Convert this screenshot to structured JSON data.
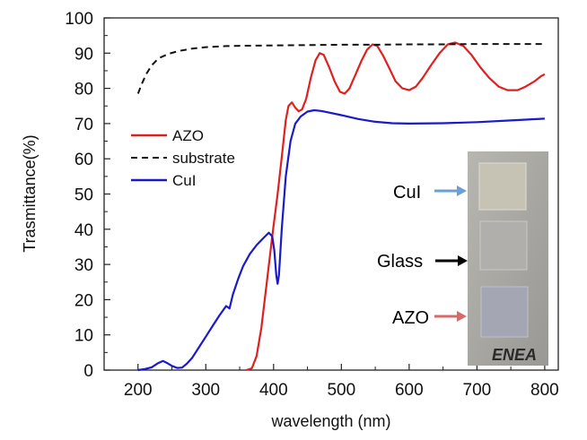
{
  "chart_data": {
    "type": "line",
    "xlabel": "wavelength (nm)",
    "ylabel": "Trasmittance(%)",
    "xlim": [
      150,
      820
    ],
    "ylim": [
      0,
      100
    ],
    "xticks": [
      200,
      300,
      400,
      500,
      600,
      700,
      800
    ],
    "yticks": [
      0,
      10,
      20,
      30,
      40,
      50,
      60,
      70,
      80,
      90,
      100
    ],
    "legend_position": "left-middle",
    "series": [
      {
        "name": "AZO",
        "color": "#e02020",
        "dash": "solid",
        "points": [
          [
            360,
            0
          ],
          [
            368,
            0.5
          ],
          [
            375,
            4
          ],
          [
            382,
            12
          ],
          [
            390,
            25
          ],
          [
            398,
            38
          ],
          [
            406,
            50
          ],
          [
            413,
            62
          ],
          [
            418,
            71
          ],
          [
            422,
            75
          ],
          [
            427,
            76
          ],
          [
            432,
            74.5
          ],
          [
            437,
            73.5
          ],
          [
            442,
            74
          ],
          [
            448,
            77
          ],
          [
            455,
            83
          ],
          [
            462,
            88
          ],
          [
            468,
            90
          ],
          [
            474,
            89.5
          ],
          [
            482,
            86
          ],
          [
            490,
            82
          ],
          [
            498,
            79
          ],
          [
            505,
            78.5
          ],
          [
            512,
            80
          ],
          [
            520,
            83.5
          ],
          [
            530,
            88
          ],
          [
            538,
            91
          ],
          [
            546,
            92.5
          ],
          [
            553,
            92
          ],
          [
            561,
            89.5
          ],
          [
            570,
            86
          ],
          [
            580,
            82
          ],
          [
            590,
            80
          ],
          [
            600,
            79.5
          ],
          [
            610,
            80.5
          ],
          [
            620,
            83
          ],
          [
            632,
            86.5
          ],
          [
            645,
            90
          ],
          [
            657,
            92.5
          ],
          [
            668,
            93
          ],
          [
            680,
            92
          ],
          [
            692,
            89.5
          ],
          [
            705,
            86
          ],
          [
            718,
            83
          ],
          [
            732,
            80.5
          ],
          [
            745,
            79.5
          ],
          [
            760,
            79.5
          ],
          [
            772,
            80.5
          ],
          [
            785,
            82
          ],
          [
            795,
            83.5
          ],
          [
            800,
            84
          ]
        ]
      },
      {
        "name": "substrate",
        "color": "#111111",
        "dash": "dashed",
        "points": [
          [
            200,
            78.5
          ],
          [
            205,
            81
          ],
          [
            212,
            84
          ],
          [
            220,
            86.5
          ],
          [
            230,
            88.5
          ],
          [
            245,
            89.8
          ],
          [
            260,
            90.6
          ],
          [
            280,
            91.3
          ],
          [
            300,
            91.7
          ],
          [
            330,
            92
          ],
          [
            360,
            92.1
          ],
          [
            400,
            92.2
          ],
          [
            450,
            92.3
          ],
          [
            500,
            92.4
          ],
          [
            550,
            92.4
          ],
          [
            600,
            92.5
          ],
          [
            650,
            92.5
          ],
          [
            700,
            92.6
          ],
          [
            750,
            92.6
          ],
          [
            800,
            92.6
          ]
        ]
      },
      {
        "name": "CuI",
        "color": "#1a1acc",
        "dash": "solid",
        "points": [
          [
            200,
            0
          ],
          [
            210,
            0.3
          ],
          [
            220,
            0.8
          ],
          [
            230,
            2
          ],
          [
            237,
            2.6
          ],
          [
            243,
            2
          ],
          [
            250,
            1.2
          ],
          [
            258,
            0.6
          ],
          [
            265,
            0.7
          ],
          [
            272,
            1.8
          ],
          [
            280,
            3.5
          ],
          [
            290,
            6.5
          ],
          [
            300,
            9.5
          ],
          [
            310,
            12.5
          ],
          [
            320,
            15.5
          ],
          [
            330,
            18.2
          ],
          [
            335,
            17.5
          ],
          [
            340,
            21.5
          ],
          [
            348,
            26
          ],
          [
            355,
            29.5
          ],
          [
            365,
            33
          ],
          [
            375,
            35.5
          ],
          [
            385,
            37.5
          ],
          [
            393,
            39
          ],
          [
            398,
            38
          ],
          [
            401,
            34
          ],
          [
            404,
            27
          ],
          [
            406,
            24.5
          ],
          [
            408,
            27
          ],
          [
            412,
            40
          ],
          [
            418,
            55
          ],
          [
            425,
            65
          ],
          [
            432,
            70
          ],
          [
            440,
            72
          ],
          [
            450,
            73.4
          ],
          [
            460,
            73.8
          ],
          [
            470,
            73.6
          ],
          [
            480,
            73.2
          ],
          [
            500,
            72.4
          ],
          [
            525,
            71.3
          ],
          [
            550,
            70.5
          ],
          [
            575,
            70.1
          ],
          [
            600,
            70
          ],
          [
            650,
            70.1
          ],
          [
            700,
            70.4
          ],
          [
            750,
            70.9
          ],
          [
            800,
            71.4
          ]
        ]
      }
    ],
    "inset": {
      "description_labels": [
        {
          "text": "CuI",
          "arrow_color": "#6a9fd8"
        },
        {
          "text": "Glass",
          "arrow_color": "#000000"
        },
        {
          "text": "AZO",
          "arrow_color": "#d86a6a"
        }
      ],
      "logo": "ENEA"
    }
  }
}
